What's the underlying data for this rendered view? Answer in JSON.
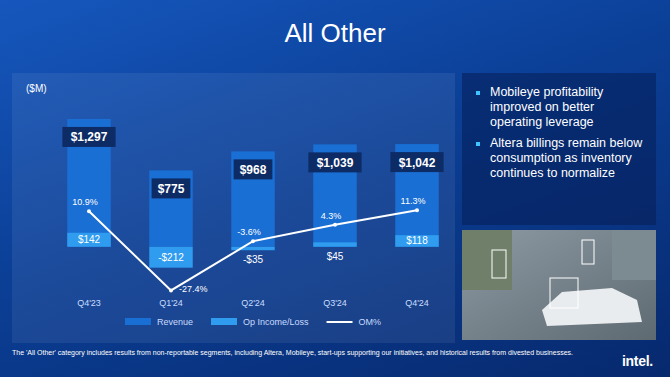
{
  "page": {
    "title": "All Other",
    "bullets": [
      "Mobileye profitability improved on better operating leverage",
      "Altera billings remain below consumption as inventory continues to normalize"
    ],
    "footnote": "The 'All Other' category includes results from non-reportable segments, including Altera, Mobileye, start-ups supporting our initiatives, and historical results from divested businesses.",
    "logo": "intel."
  },
  "chart_data": {
    "type": "bar",
    "ylabel": "($M)",
    "categories": [
      "Q4'23",
      "Q1'24",
      "Q2'24",
      "Q3'24",
      "Q4'24"
    ],
    "ylim": [
      -540,
      1540
    ],
    "y2lim": [
      -32,
      67
    ],
    "tick_labels": false,
    "grid": false,
    "legend": "bottom",
    "data_labels": true,
    "series": [
      {
        "name": "Revenue",
        "type": "bar",
        "color": "#1a6fd4",
        "values": [
          1297,
          775,
          968,
          1039,
          1042
        ],
        "value_labels": [
          "$1,297",
          "$775",
          "$968",
          "$1,039",
          "$1,042"
        ]
      },
      {
        "name": "Op Income/Loss",
        "type": "bar",
        "color": "#2f9cf0",
        "values": [
          142,
          -212,
          -35,
          45,
          118
        ],
        "value_labels": [
          "$142",
          "-$212",
          "-$35",
          "$45",
          "$118"
        ]
      },
      {
        "name": "OM%",
        "type": "line",
        "axis": "y2",
        "color": "#ffffff",
        "values": [
          10.9,
          -27.4,
          -3.6,
          4.3,
          11.3
        ],
        "value_labels": [
          "10.9%",
          "-27.4%",
          "-3.6%",
          "4.3%",
          "11.3%"
        ]
      }
    ]
  }
}
